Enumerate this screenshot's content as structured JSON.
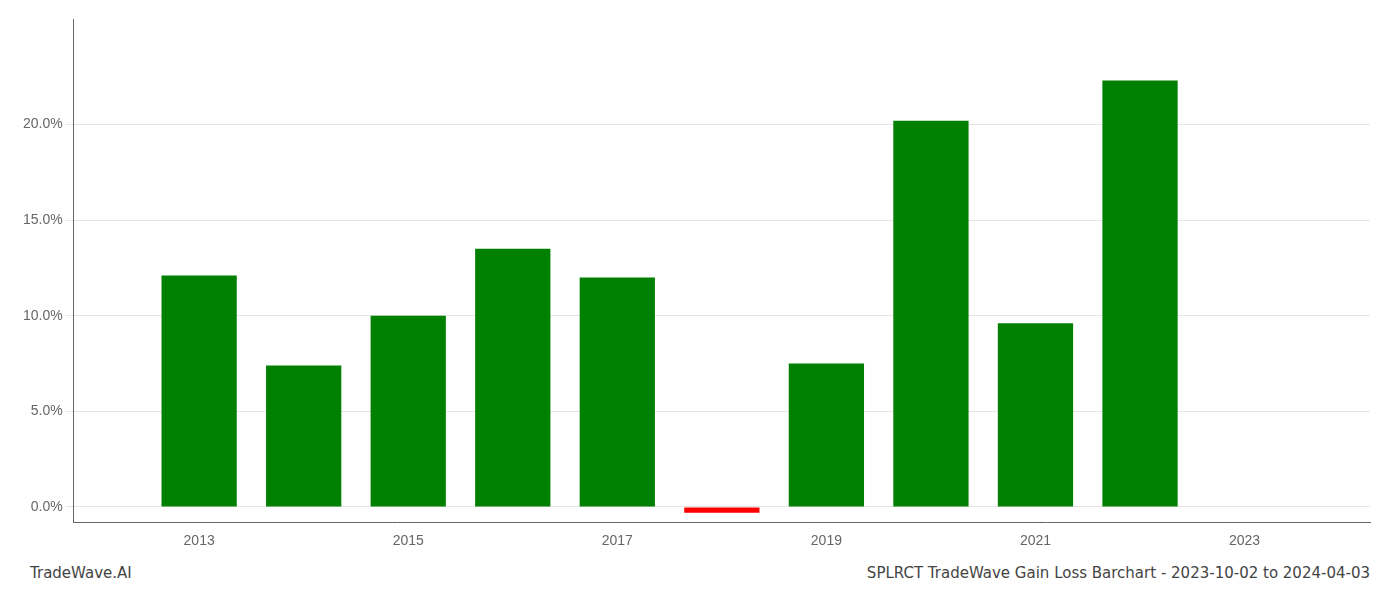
{
  "chart_data": {
    "type": "bar",
    "title": "SPLRCT TradeWave Gain Loss Barchart - 2023-10-02 to 2024-04-03",
    "annotations": [
      "TradeWave.AI"
    ],
    "x": [
      2013,
      2014,
      2015,
      2016,
      2017,
      2018,
      2019,
      2020,
      2021,
      2022,
      2023
    ],
    "values": [
      0.121,
      0.074,
      0.1,
      0.135,
      0.12,
      -0.003,
      0.075,
      0.202,
      0.096,
      0.223,
      null
    ],
    "colors": [
      "#008000",
      "#008000",
      "#008000",
      "#008000",
      "#008000",
      "#ff0000",
      "#008000",
      "#008000",
      "#008000",
      "#008000",
      null
    ],
    "xlim": [
      2011.8,
      2024.2
    ],
    "xticks": [
      2013,
      2015,
      2017,
      2019,
      2021,
      2023
    ],
    "ylim": [
      -0.008,
      0.255
    ],
    "yticks": [
      {
        "value": 0.0,
        "label": "0.0%"
      },
      {
        "value": 0.05,
        "label": "5.0%"
      },
      {
        "value": 0.1,
        "label": "10.0%"
      },
      {
        "value": 0.15,
        "label": "15.0%"
      },
      {
        "value": 0.2,
        "label": "20.0%"
      }
    ],
    "grid": "y"
  }
}
